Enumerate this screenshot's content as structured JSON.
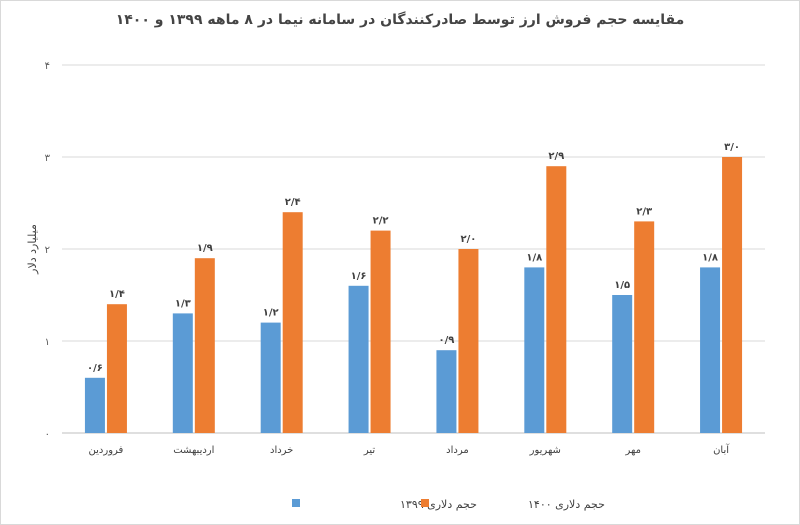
{
  "chart_data": {
    "type": "bar",
    "title": "مقایسه حجم فروش ارز توسط صادرکنندگان در سامانه نیما در ۸ ماهه ۱۳۹۹ و ۱۴۰۰",
    "xlabel": "",
    "ylabel": "میلیارد دلار",
    "ylim": [
      0,
      4
    ],
    "yticks": [
      0,
      1,
      2,
      3,
      4
    ],
    "ytick_labels": [
      "۰",
      "۱",
      "۲",
      "۳",
      "۴"
    ],
    "grid": true,
    "legend_position": "bottom",
    "categories": [
      "فروردین",
      "اردیبهشت",
      "خرداد",
      "تیر",
      "مرداد",
      "شهریور",
      "مهر",
      "آبان"
    ],
    "series": [
      {
        "name": "حجم دلاری ۱۳۹۹",
        "color": "#5B9BD5",
        "values": [
          0.6,
          1.3,
          1.2,
          1.6,
          0.9,
          1.8,
          1.5,
          1.8
        ],
        "labels": [
          "۰/۶",
          "۱/۳",
          "۱/۲",
          "۱/۶",
          "۰/۹",
          "۱/۸",
          "۱/۵",
          "۱/۸"
        ]
      },
      {
        "name": "حجم دلاری ۱۴۰۰",
        "color": "#ED7D31",
        "values": [
          1.4,
          1.9,
          2.4,
          2.2,
          2.0,
          2.9,
          2.3,
          3.0
        ],
        "labels": [
          "۱/۴",
          "۱/۹",
          "۲/۴",
          "۲/۲",
          "۲/۰",
          "۲/۹",
          "۲/۳",
          "۳/۰"
        ]
      }
    ]
  }
}
